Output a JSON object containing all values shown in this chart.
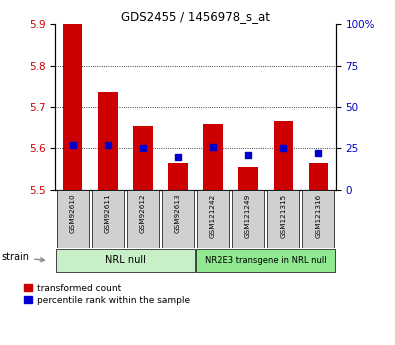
{
  "title": "GDS2455 / 1456978_s_at",
  "samples": [
    "GSM92610",
    "GSM92611",
    "GSM92612",
    "GSM92613",
    "GSM121242",
    "GSM121249",
    "GSM121315",
    "GSM121316"
  ],
  "transformed_counts": [
    5.905,
    5.735,
    5.655,
    5.565,
    5.66,
    5.555,
    5.665,
    5.565
  ],
  "percentile_ranks": [
    27,
    27,
    25,
    20,
    26,
    21,
    25,
    22
  ],
  "ylim_left": [
    5.5,
    5.9
  ],
  "ylim_right": [
    0,
    100
  ],
  "yticks_left": [
    5.5,
    5.6,
    5.7,
    5.8,
    5.9
  ],
  "yticks_right": [
    0,
    25,
    50,
    75,
    100
  ],
  "ytick_labels_right": [
    "0",
    "25",
    "50",
    "75",
    "100%"
  ],
  "bar_color": "#cc0000",
  "dot_color": "#0000cc",
  "bar_bottom": 5.5,
  "group1_label": "NRL null",
  "group2_label": "NR2E3 transgene in NRL null",
  "group1_count": 4,
  "group2_count": 4,
  "group1_color": "#c8f0c8",
  "group2_color": "#90e890",
  "strain_label": "strain",
  "legend_bar": "transformed count",
  "legend_dot": "percentile rank within the sample",
  "grid_color": "#000000",
  "axis_label_color_left": "#cc0000",
  "axis_label_color_right": "#0000cc",
  "sample_box_color": "#d0d0d0",
  "bar_width": 0.55,
  "gridlines_at": [
    5.6,
    5.7,
    5.8
  ]
}
